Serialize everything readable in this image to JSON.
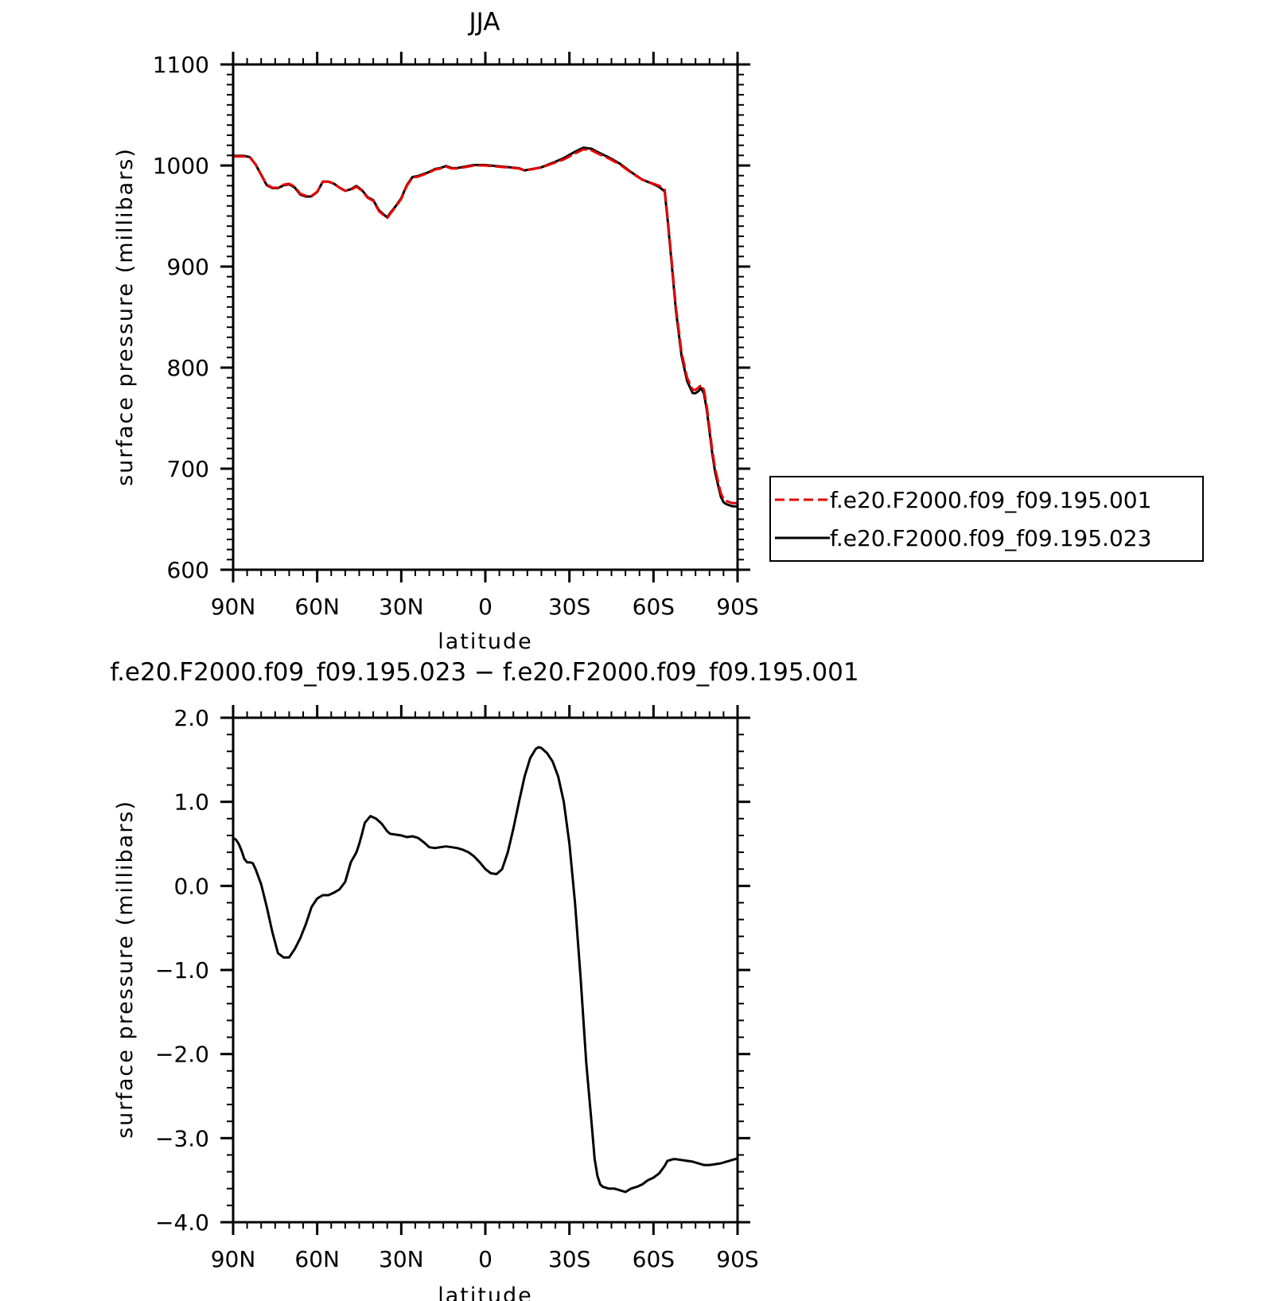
{
  "chart_data": [
    {
      "type": "line",
      "title": "JJA",
      "xlabel": "latitude",
      "ylabel": "surface pressure (millibars)",
      "xlim": [
        90,
        -90
      ],
      "ylim": [
        600,
        1100
      ],
      "x_ticks": [
        {
          "value": 90,
          "label": "90N"
        },
        {
          "value": 60,
          "label": "60N"
        },
        {
          "value": 30,
          "label": "30N"
        },
        {
          "value": 0,
          "label": "0"
        },
        {
          "value": -30,
          "label": "30S"
        },
        {
          "value": -60,
          "label": "60S"
        },
        {
          "value": -90,
          "label": "90S"
        }
      ],
      "y_ticks": [
        {
          "value": 1100,
          "label": "1100"
        },
        {
          "value": 1000,
          "label": "1000"
        },
        {
          "value": 900,
          "label": "900"
        },
        {
          "value": 800,
          "label": "800"
        },
        {
          "value": 700,
          "label": "700"
        },
        {
          "value": 600,
          "label": "600"
        }
      ],
      "legend_position": "right",
      "series": [
        {
          "name": "f.e20.F2000.f09_f09.195.001",
          "color": "#e60000",
          "style": "dashed",
          "x": [
            90,
            86,
            84,
            82,
            80,
            78,
            76,
            74,
            72,
            70,
            68,
            66,
            64,
            62,
            60,
            58,
            56,
            54,
            52,
            50,
            48,
            46,
            44,
            42,
            40,
            38,
            36,
            35,
            34,
            32,
            30,
            28,
            26,
            24,
            22,
            20,
            18,
            16,
            14,
            12,
            10,
            8,
            6,
            4,
            2,
            0,
            -4,
            -8,
            -12,
            -14,
            -16,
            -20,
            -24,
            -28,
            -32,
            -35,
            -38,
            -40,
            -44,
            -48,
            -52,
            -56,
            -60,
            -62,
            -64,
            -65,
            -66,
            -67,
            -68,
            -70,
            -72,
            -74,
            -75,
            -76,
            -77,
            -78,
            -79,
            -80,
            -81,
            -82,
            -83,
            -84,
            -85,
            -86,
            -87,
            -88,
            -89,
            -90
          ],
          "y": [
            1009,
            1009,
            1008,
            1001,
            991,
            981,
            978,
            978,
            981,
            982,
            979,
            972,
            970,
            970,
            974,
            984,
            984,
            982,
            978,
            975,
            976,
            979,
            975,
            968,
            965,
            955,
            950,
            948,
            952,
            959,
            967,
            980,
            988,
            989,
            991,
            993,
            996,
            997,
            999,
            997,
            997,
            998,
            999,
            1000,
            1000,
            1000,
            999,
            998,
            997,
            995,
            996,
            998,
            1002,
            1006,
            1012,
            1016,
            1015,
            1012,
            1007,
            1001,
            993,
            986,
            982,
            980,
            976,
            950,
            920,
            890,
            860,
            815,
            790,
            778,
            778,
            780,
            783,
            778,
            762,
            740,
            718,
            700,
            688,
            676,
            670,
            668,
            667,
            666,
            666,
            666
          ]
        },
        {
          "name": "f.e20.F2000.f09_f09.195.023",
          "color": "#000000",
          "style": "solid",
          "x": [
            90,
            86,
            84,
            82,
            80,
            78,
            76,
            74,
            72,
            70,
            68,
            66,
            64,
            62,
            60,
            58,
            56,
            54,
            52,
            50,
            48,
            46,
            44,
            42,
            40,
            38,
            36,
            35,
            34,
            32,
            30,
            28,
            26,
            24,
            22,
            20,
            18,
            16,
            14,
            12,
            10,
            8,
            6,
            4,
            2,
            0,
            -4,
            -8,
            -12,
            -14,
            -16,
            -20,
            -24,
            -28,
            -32,
            -35,
            -38,
            -40,
            -44,
            -48,
            -52,
            -56,
            -60,
            -62,
            -64,
            -65,
            -66,
            -67,
            -68,
            -70,
            -72,
            -74,
            -75,
            -76,
            -77,
            -78,
            -79,
            -80,
            -81,
            -82,
            -83,
            -84,
            -85,
            -86,
            -87,
            -88,
            -89,
            -90
          ],
          "y": [
            1009.5,
            1009.5,
            1008.3,
            1001.2,
            990.8,
            980.5,
            977.6,
            977.6,
            980.4,
            981.3,
            978.2,
            971.2,
            969.2,
            969.5,
            973.8,
            984.1,
            984.0,
            982.0,
            978.0,
            975.0,
            976.5,
            979.8,
            975.5,
            968.7,
            965.7,
            955.8,
            950.8,
            948.8,
            952.7,
            959.7,
            967.6,
            980.6,
            988.6,
            989.6,
            991.6,
            993.6,
            996.5,
            997.5,
            999.5,
            997.5,
            997.5,
            998.5,
            999.5,
            1000.5,
            1000.5,
            1000.5,
            999.4,
            998.4,
            997.3,
            995.2,
            996.2,
            998.2,
            1002.6,
            1007.3,
            1013.6,
            1017.6,
            1016.5,
            1013.4,
            1008.1,
            1001.8,
            993.5,
            986.1,
            981.6,
            978.8,
            974.5,
            948.0,
            917.6,
            887.3,
            856.9,
            811.7,
            786.8,
            774.8,
            774.7,
            776.6,
            779.6,
            774.6,
            758.6,
            736.6,
            714.6,
            696.6,
            684.6,
            672.6,
            666.8,
            664.9,
            663.9,
            662.9,
            662.7,
            662.7
          ]
        }
      ]
    },
    {
      "type": "line",
      "title": "f.e20.F2000.f09_f09.195.023 − f.e20.F2000.f09_f09.195.001",
      "xlabel": "latitude",
      "ylabel": "surface pressure (millibars)",
      "xlim": [
        90,
        -90
      ],
      "ylim": [
        -4.0,
        2.0
      ],
      "x_ticks": [
        {
          "value": 90,
          "label": "90N"
        },
        {
          "value": 60,
          "label": "60N"
        },
        {
          "value": 30,
          "label": "30N"
        },
        {
          "value": 0,
          "label": "0"
        },
        {
          "value": -30,
          "label": "30S"
        },
        {
          "value": -60,
          "label": "60S"
        },
        {
          "value": -90,
          "label": "90S"
        }
      ],
      "y_ticks": [
        {
          "value": 2.0,
          "label": "2.0"
        },
        {
          "value": 1.0,
          "label": "1.0"
        },
        {
          "value": 0.0,
          "label": "0.0"
        },
        {
          "value": -1.0,
          "label": "−1.0"
        },
        {
          "value": -2.0,
          "label": "−2.0"
        },
        {
          "value": -3.0,
          "label": "−3.0"
        },
        {
          "value": -4.0,
          "label": "−4.0"
        }
      ],
      "series": [
        {
          "color": "#000000",
          "style": "solid",
          "x": [
            90,
            89,
            88,
            87,
            86,
            85,
            84,
            83,
            82,
            80,
            78,
            76,
            74,
            72,
            70,
            68,
            66,
            64,
            62,
            60,
            58,
            56,
            54,
            52,
            50,
            48,
            46,
            45,
            44,
            43,
            41,
            39,
            37,
            35,
            34,
            32,
            30,
            28,
            26,
            24,
            22,
            20,
            18,
            16,
            14,
            12,
            10,
            8,
            6,
            4,
            2,
            0,
            -2,
            -4,
            -6,
            -8,
            -10,
            -12,
            -14,
            -16,
            -18,
            -19,
            -20,
            -22,
            -24,
            -26,
            -28,
            -30,
            -32,
            -34,
            -36,
            -38,
            -39,
            -40,
            -41,
            -42,
            -44,
            -46,
            -48,
            -50,
            -52,
            -54,
            -56,
            -58,
            -60,
            -62,
            -64,
            -65,
            -66,
            -67,
            -68,
            -70,
            -72,
            -74,
            -75,
            -76,
            -77,
            -78,
            -80,
            -82,
            -84,
            -86,
            -87,
            -88,
            -89,
            -90
          ],
          "y": [
            0.57,
            0.55,
            0.5,
            0.42,
            0.32,
            0.28,
            0.28,
            0.27,
            0.2,
            0.02,
            -0.25,
            -0.55,
            -0.8,
            -0.85,
            -0.85,
            -0.75,
            -0.62,
            -0.45,
            -0.25,
            -0.15,
            -0.11,
            -0.11,
            -0.08,
            -0.04,
            0.05,
            0.28,
            0.4,
            0.5,
            0.62,
            0.75,
            0.83,
            0.8,
            0.74,
            0.65,
            0.62,
            0.61,
            0.6,
            0.58,
            0.59,
            0.57,
            0.52,
            0.46,
            0.45,
            0.46,
            0.47,
            0.46,
            0.45,
            0.43,
            0.4,
            0.35,
            0.28,
            0.2,
            0.15,
            0.14,
            0.2,
            0.4,
            0.68,
            1.0,
            1.3,
            1.52,
            1.63,
            1.65,
            1.64,
            1.58,
            1.48,
            1.3,
            1.0,
            0.5,
            -0.2,
            -1.1,
            -2.1,
            -2.85,
            -3.25,
            -3.45,
            -3.55,
            -3.58,
            -3.6,
            -3.6,
            -3.62,
            -3.64,
            -3.6,
            -3.58,
            -3.55,
            -3.5,
            -3.47,
            -3.42,
            -3.33,
            -3.27,
            -3.26,
            -3.25,
            -3.25,
            -3.26,
            -3.27,
            -3.28,
            -3.29,
            -3.3,
            -3.31,
            -3.32,
            -3.32,
            -3.31,
            -3.3,
            -3.28,
            -3.27,
            -3.26,
            -3.25,
            -3.24
          ]
        }
      ]
    }
  ]
}
